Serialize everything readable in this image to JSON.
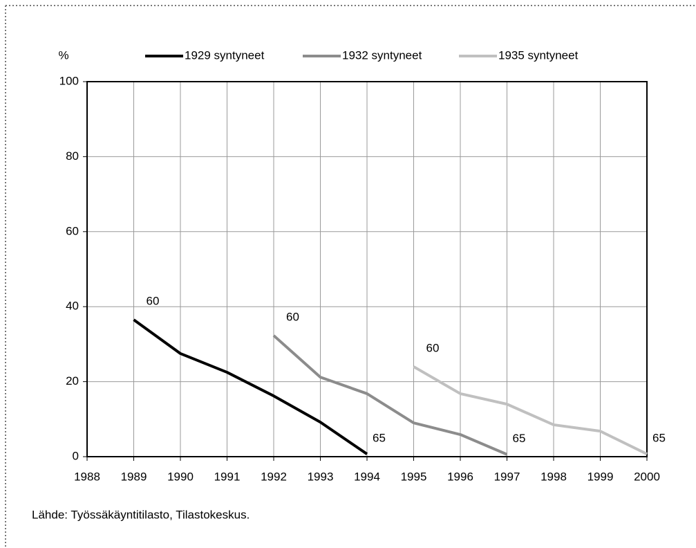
{
  "chart_data": {
    "type": "line",
    "y_label": "%",
    "source": "Lähde: Työssäkäyntitilasto, Tilastokeskus.",
    "x": [
      1988,
      1989,
      1990,
      1991,
      1992,
      1993,
      1994,
      1995,
      1996,
      1997,
      1998,
      1999,
      2000
    ],
    "xlim": [
      1988,
      2000
    ],
    "xticks": [
      1988,
      1989,
      1990,
      1991,
      1992,
      1993,
      1994,
      1995,
      1996,
      1997,
      1998,
      1999,
      2000
    ],
    "ylim": [
      0,
      100
    ],
    "yticks": [
      0,
      20,
      40,
      60,
      80,
      100
    ],
    "grid": true,
    "legend": "top",
    "series": [
      {
        "name": "1929 syntyneet",
        "color": "#000000",
        "values": [
          null,
          36.5,
          27.5,
          22.5,
          16.2,
          9.2,
          0.7,
          null,
          null,
          null,
          null,
          null,
          null
        ],
        "labels": [
          null,
          "60",
          null,
          null,
          null,
          null,
          "65",
          null,
          null,
          null,
          null,
          null,
          null
        ]
      },
      {
        "name": "1932 syntyneet",
        "color": "#8c8c8c",
        "values": [
          null,
          null,
          null,
          null,
          32.3,
          21.2,
          16.8,
          9,
          5.9,
          0.6,
          null,
          null,
          null
        ],
        "labels": [
          null,
          null,
          null,
          null,
          "60",
          null,
          null,
          null,
          null,
          "65",
          null,
          null,
          null
        ]
      },
      {
        "name": "1935 syntyneet",
        "color": "#c0c0c0",
        "values": [
          null,
          null,
          null,
          null,
          null,
          null,
          null,
          24,
          16.8,
          14,
          8.5,
          6.8,
          0.7
        ],
        "labels": [
          null,
          null,
          null,
          null,
          null,
          null,
          null,
          "60",
          null,
          null,
          null,
          null,
          "65"
        ]
      }
    ]
  }
}
